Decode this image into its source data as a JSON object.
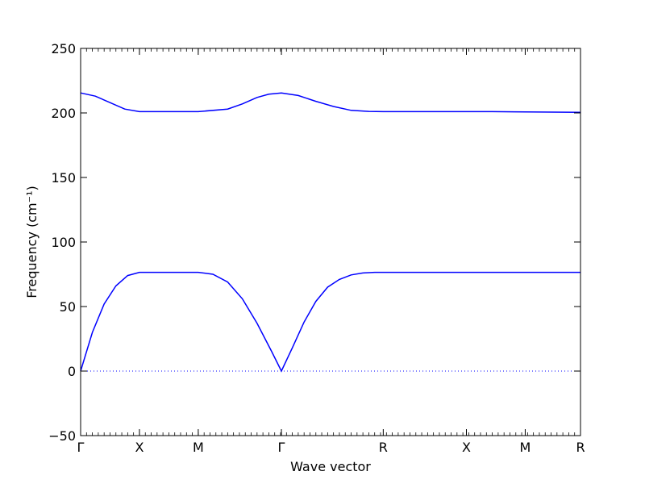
{
  "chart_data": {
    "type": "line",
    "xlabel": "Wave vector",
    "ylabel": "Frequency (cm⁻¹)",
    "ylim": [
      -50,
      250
    ],
    "yticks": [
      -50,
      0,
      50,
      100,
      150,
      200,
      250
    ],
    "ytick_labels": [
      "−50",
      "0",
      "50",
      "100",
      "150",
      "200",
      "250"
    ],
    "xlim": [
      0,
      8.5
    ],
    "xticks": [
      {
        "x": 0,
        "label": "Γ"
      },
      {
        "x": 1,
        "label": "X"
      },
      {
        "x": 2,
        "label": "M"
      },
      {
        "x": 3.414,
        "label": "Γ"
      },
      {
        "x": 5.146,
        "label": "R"
      },
      {
        "x": 6.56,
        "label": "X"
      },
      {
        "x": 7.56,
        "label": "M"
      },
      {
        "x": 8.5,
        "label": "R"
      }
    ],
    "grid": false,
    "zero_line": {
      "y": 0,
      "style": "dotted"
    },
    "line_color": "#0000ff",
    "series": [
      {
        "x": [
          0,
          0.25,
          0.5,
          0.75,
          1,
          1.5,
          2,
          2.5,
          2.75,
          3.0,
          3.2,
          3.414,
          3.7,
          4.0,
          4.3,
          4.6,
          4.9,
          5.146,
          6.0,
          7.0,
          8.5
        ],
        "values": [
          215.5,
          213,
          208,
          203,
          201,
          201,
          201,
          203,
          207,
          212,
          214.5,
          215.5,
          213.5,
          209,
          205,
          202,
          201.2,
          201,
          201,
          201,
          200.5
        ]
      },
      {
        "x": [
          0,
          0.2,
          0.4,
          0.6,
          0.8,
          1,
          1.5,
          2,
          2.25,
          2.5,
          2.75,
          3.0,
          3.25,
          3.414,
          3.6,
          3.8,
          4.0,
          4.2,
          4.4,
          4.6,
          4.8,
          5.0,
          5.146,
          6.0,
          7.0,
          8.5
        ],
        "values": [
          0,
          30,
          52,
          66,
          74,
          76.5,
          76.5,
          76.5,
          75,
          69,
          56,
          37,
          15,
          0,
          18,
          38,
          54,
          65,
          71,
          74.5,
          76,
          76.5,
          76.5,
          76.5,
          76.5,
          76.5
        ]
      }
    ]
  }
}
